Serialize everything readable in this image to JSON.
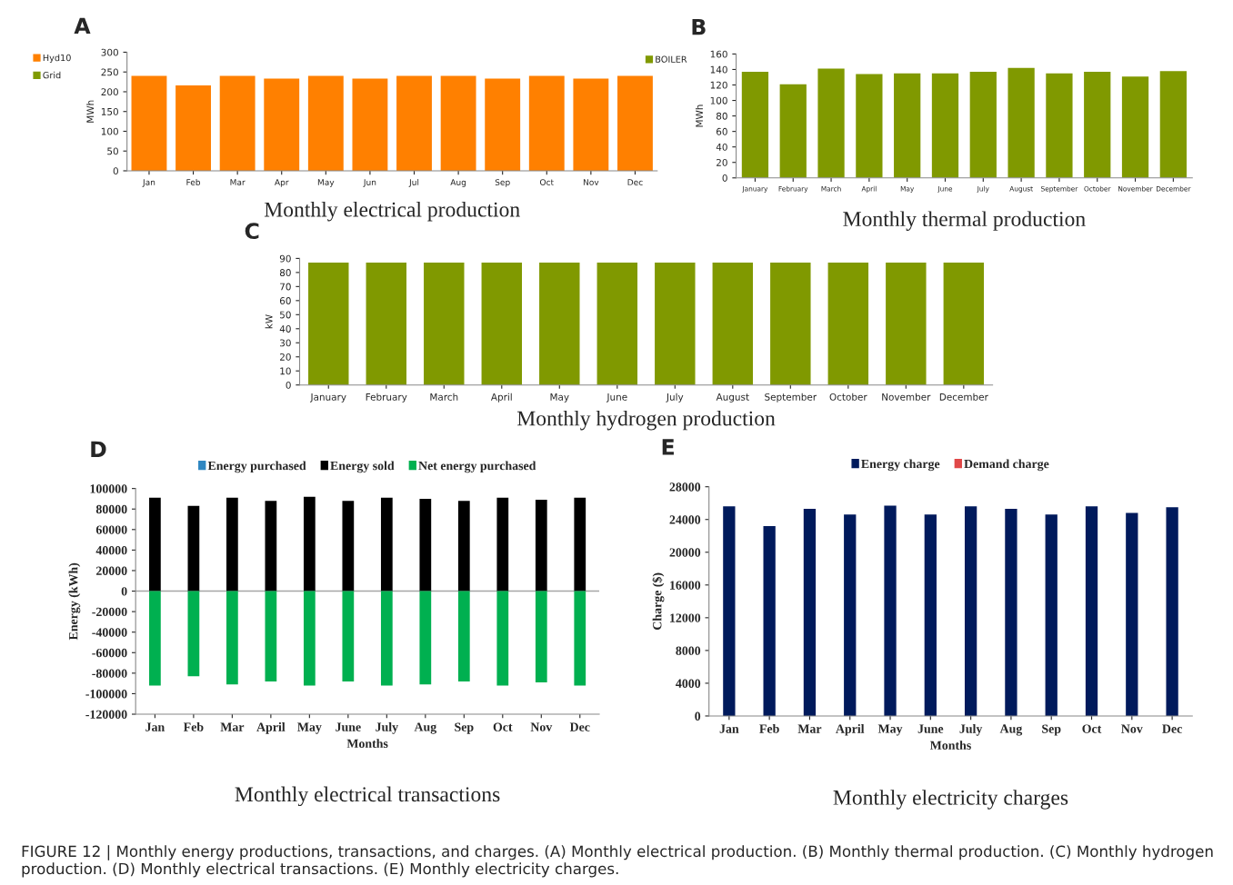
{
  "chart_data": [
    {
      "type": "bar",
      "title": "Monthly electrical production",
      "ylabel": "MWh",
      "annotations": [
        "A"
      ],
      "categories": [
        "Jan",
        "Feb",
        "Mar",
        "Apr",
        "May",
        "Jun",
        "Jul",
        "Aug",
        "Sep",
        "Oct",
        "Nov",
        "Dec"
      ],
      "series": [
        {
          "name": "Hyd10",
          "color": "#ff8000",
          "values": [
            240,
            216,
            240,
            233,
            240,
            233,
            240,
            240,
            233,
            240,
            233,
            240
          ]
        },
        {
          "name": "Grid",
          "color": "#7f9a00",
          "values": [
            0,
            0,
            0,
            0,
            0,
            0,
            0,
            0,
            0,
            0,
            0,
            0
          ]
        }
      ],
      "stacked": true,
      "ylim": [
        0,
        300
      ],
      "yticks": [
        0,
        50,
        100,
        150,
        200,
        250,
        300
      ],
      "legend": "left",
      "grid": false
    },
    {
      "type": "bar",
      "title": "Monthly thermal production",
      "ylabel": "MWh",
      "annotations": [
        "B"
      ],
      "categories": [
        "January",
        "February",
        "March",
        "April",
        "May",
        "June",
        "July",
        "August",
        "September",
        "October",
        "November",
        "December"
      ],
      "series": [
        {
          "name": "BOILER",
          "color": "#809900",
          "values": [
            137,
            121,
            141,
            134,
            135,
            135,
            137,
            142,
            135,
            137,
            131,
            138
          ]
        }
      ],
      "ylim": [
        0,
        160
      ],
      "yticks": [
        0,
        20,
        40,
        60,
        80,
        100,
        120,
        140,
        160
      ],
      "legend": "left",
      "grid": false
    },
    {
      "type": "bar",
      "title": "Monthly hydrogen production",
      "ylabel": "kW",
      "annotations": [
        "C"
      ],
      "categories": [
        "January",
        "February",
        "March",
        "April",
        "May",
        "June",
        "July",
        "August",
        "September",
        "October",
        "November",
        "December"
      ],
      "series": [
        {
          "color": "#809900",
          "values": [
            87,
            87,
            87,
            87,
            87,
            87,
            87,
            87,
            87,
            87,
            87,
            87
          ]
        }
      ],
      "ylim": [
        0,
        90
      ],
      "yticks": [
        0,
        10,
        20,
        30,
        40,
        50,
        60,
        70,
        80,
        90
      ],
      "grid": false
    },
    {
      "type": "bar",
      "title": "Monthly electrical transactions",
      "xlabel": "Months",
      "ylabel": "Energy (kWh)",
      "annotations": [
        "D"
      ],
      "categories": [
        "Jan",
        "Feb",
        "Mar",
        "April",
        "May",
        "June",
        "July",
        "Aug",
        "Sep",
        "Oct",
        "Nov",
        "Dec"
      ],
      "series": [
        {
          "name": "Energy purchased",
          "color": "#2e86c1",
          "values": [
            0,
            0,
            0,
            0,
            0,
            0,
            0,
            0,
            0,
            0,
            0,
            0
          ]
        },
        {
          "name": "Energy sold",
          "color": "#000000",
          "values": [
            91000,
            83000,
            91000,
            88000,
            92000,
            88000,
            91000,
            90000,
            88000,
            91000,
            89000,
            91000
          ]
        },
        {
          "name": "Net energy purchased",
          "color": "#00b050",
          "values": [
            -92000,
            -83000,
            -91000,
            -88000,
            -92000,
            -88000,
            -92000,
            -91000,
            -88000,
            -92000,
            -89000,
            -92000
          ]
        }
      ],
      "stacked": true,
      "ylim": [
        -120000,
        100000
      ],
      "yticks": [
        -120000,
        -100000,
        -80000,
        -60000,
        -40000,
        -20000,
        0,
        20000,
        40000,
        60000,
        80000,
        100000
      ],
      "ref_lines": [
        {
          "axis": "y",
          "value": 0,
          "color": "#a6a6a6"
        }
      ],
      "legend": "top",
      "grid": false
    },
    {
      "type": "bar",
      "title": "Monthly electricity charges",
      "xlabel": "Months",
      "ylabel": "Charge ($)",
      "annotations": [
        "E",
        "FIGURE 12 | Monthly energy productions, transactions, and charges. (A) Monthly electrical production. (B) Monthly thermal production. (C) Monthly hydrogen production. (D) Monthly electrical transactions. (E) Monthly electricity charges."
      ],
      "categories": [
        "Jan",
        "Feb",
        "Mar",
        "April",
        "May",
        "June",
        "July",
        "Aug",
        "Sep",
        "Oct",
        "Nov",
        "Dec"
      ],
      "series": [
        {
          "name": "Energy charge",
          "color": "#001a5c",
          "values": [
            25600,
            23200,
            25300,
            24600,
            25700,
            24600,
            25600,
            25300,
            24600,
            25600,
            24800,
            25500
          ]
        },
        {
          "name": "Demand charge",
          "color": "#e04848",
          "values": [
            0,
            0,
            0,
            0,
            0,
            0,
            0,
            0,
            0,
            0,
            0,
            0
          ]
        }
      ],
      "stacked": true,
      "ylim": [
        0,
        28000
      ],
      "yticks": [
        0,
        4000,
        8000,
        12000,
        16000,
        20000,
        24000,
        28000
      ],
      "legend": "top",
      "grid": false
    }
  ]
}
